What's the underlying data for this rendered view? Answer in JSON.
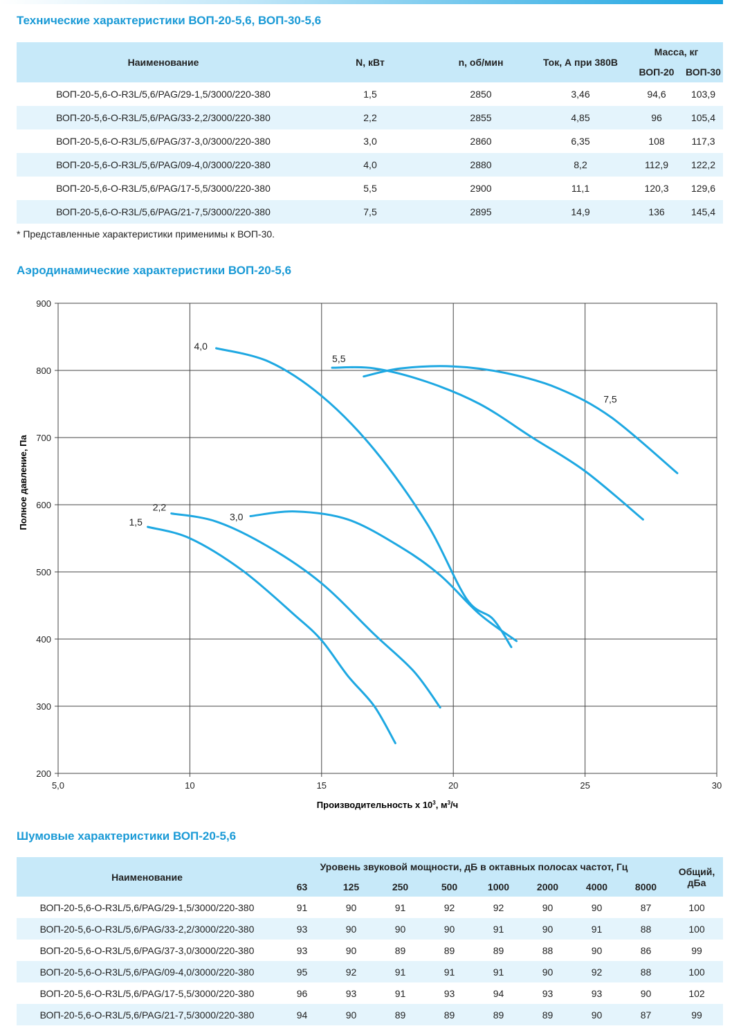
{
  "tech": {
    "title": "Технические характеристики ВОП-20-5,6, ВОП-30-5,6",
    "headers": {
      "name": "Наименование",
      "power": "N, кВт",
      "rpm": "n, об/мин",
      "current": "Ток, А при 380В",
      "mass": "Масса, кг",
      "mass20": "ВОП-20",
      "mass30": "ВОП-30"
    },
    "rows": [
      {
        "name": "ВОП-20-5,6-O-R3L/5,6/PAG/29-1,5/3000/220-380",
        "power": "1,5",
        "rpm": "2850",
        "current": "3,46",
        "mass20": "94,6",
        "mass30": "103,9"
      },
      {
        "name": "ВОП-20-5,6-O-R3L/5,6/PAG/33-2,2/3000/220-380",
        "power": "2,2",
        "rpm": "2855",
        "current": "4,85",
        "mass20": "96",
        "mass30": "105,4"
      },
      {
        "name": "ВОП-20-5,6-O-R3L/5,6/PAG/37-3,0/3000/220-380",
        "power": "3,0",
        "rpm": "2860",
        "current": "6,35",
        "mass20": "108",
        "mass30": "117,3"
      },
      {
        "name": "ВОП-20-5,6-O-R3L/5,6/PAG/09-4,0/3000/220-380",
        "power": "4,0",
        "rpm": "2880",
        "current": "8,2",
        "mass20": "112,9",
        "mass30": "122,2"
      },
      {
        "name": "ВОП-20-5,6-O-R3L/5,6/PAG/17-5,5/3000/220-380",
        "power": "5,5",
        "rpm": "2900",
        "current": "11,1",
        "mass20": "120,3",
        "mass30": "129,6"
      },
      {
        "name": "ВОП-20-5,6-O-R3L/5,6/PAG/21-7,5/3000/220-380",
        "power": "7,5",
        "rpm": "2895",
        "current": "14,9",
        "mass20": "136",
        "mass30": "145,4"
      }
    ],
    "note": "* Представленные характеристики применимы к ВОП-30."
  },
  "aero": {
    "title": "Аэродинамические характеристики ВОП-20-5,6"
  },
  "chart_data": {
    "type": "line",
    "title": "",
    "xlabel": "Производительность x 10",
    "xlabel_sup": "3",
    "xlabel_unit": ", м",
    "xlabel_unit_sup": "3",
    "xlabel_tail": "/ч",
    "ylabel": "Полное давление, Па",
    "xlim": [
      5,
      30
    ],
    "ylim": [
      200,
      900
    ],
    "x_ticks": [
      5,
      10,
      15,
      20,
      25,
      30
    ],
    "x_tick_labels": [
      "5,0",
      "10",
      "15",
      "20",
      "25",
      "30"
    ],
    "y_ticks": [
      200,
      300,
      400,
      500,
      600,
      700,
      800,
      900
    ],
    "y_tick_labels": [
      "200",
      "300",
      "400",
      "500",
      "600",
      "700",
      "800",
      "900"
    ],
    "grid": true,
    "line_color": "#1ea8e2",
    "series": [
      {
        "name": "1,5",
        "x": [
          8.4,
          10,
          12,
          14,
          15,
          16,
          17,
          17.8
        ],
        "y": [
          567,
          550,
          502,
          435,
          398,
          345,
          300,
          245
        ]
      },
      {
        "name": "2,2",
        "x": [
          9.3,
          11,
          13,
          15,
          17,
          18.5,
          19.5
        ],
        "y": [
          587,
          575,
          537,
          483,
          407,
          352,
          298
        ]
      },
      {
        "name": "3,0",
        "x": [
          12.3,
          14,
          16,
          18,
          19.5,
          21,
          22.4
        ],
        "y": [
          583,
          590,
          578,
          537,
          495,
          437,
          397
        ]
      },
      {
        "name": "4,0",
        "x": [
          11,
          13,
          15,
          17,
          19,
          20.5,
          21.5,
          22.2
        ],
        "y": [
          833,
          813,
          762,
          682,
          572,
          460,
          430,
          388
        ]
      },
      {
        "name": "5,5",
        "x": [
          15.4,
          17,
          19,
          21,
          23,
          25,
          27.2
        ],
        "y": [
          804,
          803,
          783,
          750,
          700,
          650,
          578
        ]
      },
      {
        "name": "7,5",
        "x": [
          16.6,
          18,
          20,
          22,
          24,
          26,
          28.5
        ],
        "y": [
          791,
          803,
          806,
          796,
          773,
          730,
          647
        ]
      }
    ],
    "series_label_positions": "near left end of each curve"
  },
  "noise": {
    "title": "Шумовые характеристики ВОП-20-5,6",
    "headers": {
      "name": "Наименование",
      "level": "Уровень звуковой мощности, дБ в октавных полосах частот, Гц",
      "total_line1": "Общий,",
      "total_line2": "дБа"
    },
    "freqs": [
      "63",
      "125",
      "250",
      "500",
      "1000",
      "2000",
      "4000",
      "8000"
    ],
    "rows": [
      {
        "name": "ВОП-20-5,6-O-R3L/5,6/PAG/29-1,5/3000/220-380",
        "values": [
          "91",
          "90",
          "91",
          "92",
          "92",
          "90",
          "90",
          "87"
        ],
        "total": "100"
      },
      {
        "name": "ВОП-20-5,6-O-R3L/5,6/PAG/33-2,2/3000/220-380",
        "values": [
          "93",
          "90",
          "90",
          "90",
          "91",
          "90",
          "91",
          "88"
        ],
        "total": "100"
      },
      {
        "name": "ВОП-20-5,6-O-R3L/5,6/PAG/37-3,0/3000/220-380",
        "values": [
          "93",
          "90",
          "89",
          "89",
          "89",
          "88",
          "90",
          "86"
        ],
        "total": "99"
      },
      {
        "name": "ВОП-20-5,6-O-R3L/5,6/PAG/09-4,0/3000/220-380",
        "values": [
          "95",
          "92",
          "91",
          "91",
          "91",
          "90",
          "92",
          "88"
        ],
        "total": "100"
      },
      {
        "name": "ВОП-20-5,6-O-R3L/5,6/PAG/17-5,5/3000/220-380",
        "values": [
          "96",
          "93",
          "91",
          "93",
          "94",
          "93",
          "93",
          "90"
        ],
        "total": "102"
      },
      {
        "name": "ВОП-20-5,6-O-R3L/5,6/PAG/21-7,5/3000/220-380",
        "values": [
          "94",
          "90",
          "89",
          "89",
          "89",
          "89",
          "90",
          "87"
        ],
        "total": "99"
      }
    ]
  }
}
